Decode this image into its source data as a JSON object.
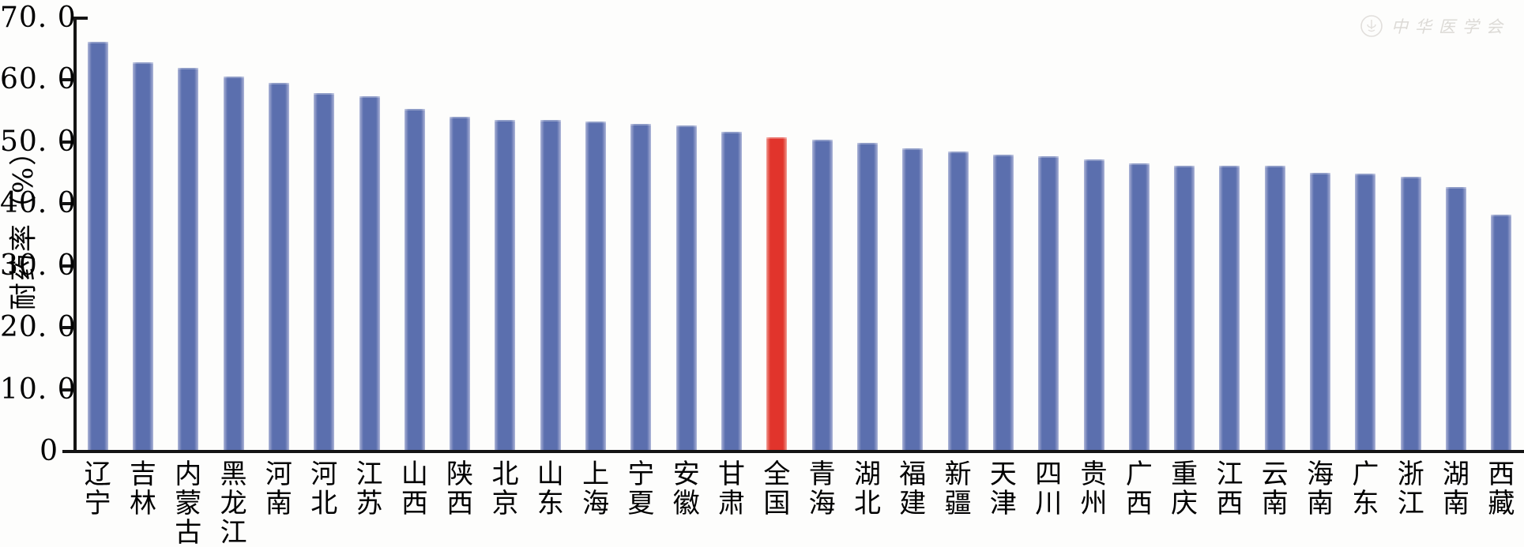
{
  "watermark": {
    "text": "中华医学会",
    "logo": "seal-logo"
  },
  "chart_data": {
    "type": "bar",
    "title": "",
    "xlabel": "",
    "ylabel": "耐药率（%）",
    "ylim": [
      0,
      70
    ],
    "grid": false,
    "legend": null,
    "ytick_labels": [
      "70. 0",
      "60. 0",
      "50. 0",
      "40. 0",
      "30. 0",
      "20. 0",
      "10. 0",
      "0"
    ],
    "ytick_values": [
      70,
      60,
      50,
      40,
      30,
      20,
      10,
      0
    ],
    "categories": [
      "辽宁",
      "吉林",
      "内蒙古",
      "黑龙江",
      "河南",
      "河北",
      "江苏",
      "山西",
      "陕西",
      "北京",
      "山东",
      "上海",
      "宁夏",
      "安徽",
      "甘肃",
      "全国",
      "青海",
      "湖北",
      "福建",
      "新疆",
      "天津",
      "四川",
      "贵州",
      "广西",
      "重庆",
      "江西",
      "云南",
      "海南",
      "广东",
      "浙江",
      "湖南",
      "西藏"
    ],
    "values": [
      66.2,
      62.9,
      62.0,
      60.6,
      59.6,
      57.9,
      57.4,
      55.3,
      54.1,
      53.6,
      53.6,
      53.3,
      52.9,
      52.7,
      51.6,
      50.7,
      50.4,
      49.8,
      48.9,
      48.5,
      48.0,
      47.7,
      47.2,
      46.6,
      46.2,
      46.1,
      46.1,
      45.0,
      44.9,
      44.4,
      42.7,
      38.2
    ],
    "highlight_category": "全国",
    "highlight_index": 15,
    "bar_color": "#5b6fae",
    "bar_mid_edge_color": "#8b97c6",
    "bar_edge_color": "#aeb7d8",
    "highlight_color": "#e1342c",
    "highlight_mid_edge_color": "#e96f64",
    "highlight_edge_color": "#f2a19b",
    "axis_color": "#141414"
  }
}
